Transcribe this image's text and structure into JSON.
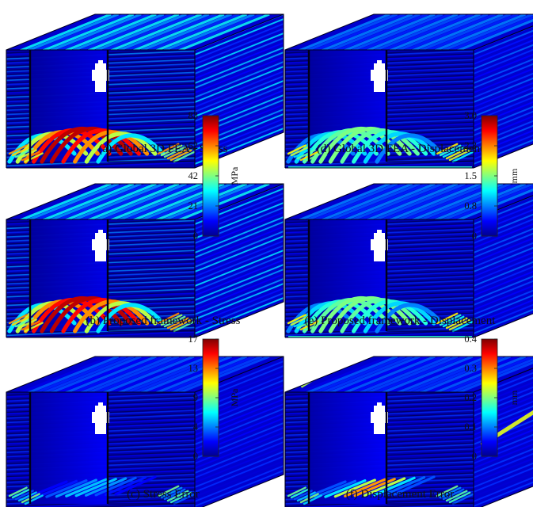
{
  "panels": [
    {
      "id": "a",
      "caption": "(a) Global 3D FEA - Stress",
      "field": "stress",
      "variant": "global",
      "strength": 1.0
    },
    {
      "id": "b",
      "caption": "(b) Proposed framework - Stress",
      "field": "stress",
      "variant": "proposed",
      "strength": 1.0
    },
    {
      "id": "c",
      "caption": "(c) Stress Error",
      "field": "stress",
      "variant": "error",
      "strength": 0.35
    },
    {
      "id": "d",
      "caption": "(d) Global 3D FEA - Displacement",
      "field": "displacement",
      "variant": "global",
      "strength": 0.45
    },
    {
      "id": "e",
      "caption": "(e) Proposed framework - Displacement",
      "field": "displacement",
      "variant": "proposed",
      "strength": 0.45
    },
    {
      "id": "f",
      "caption": "(f) Displacement Error",
      "field": "displacement",
      "variant": "error",
      "strength": 0.5
    }
  ],
  "colorbars": [
    {
      "id": "stress",
      "unit": "MPa",
      "ticks": [
        "0",
        "21",
        "42",
        "62",
        "83"
      ]
    },
    {
      "id": "displacement",
      "unit": "mm",
      "ticks": [
        "0",
        "0.8",
        "1.5",
        "2.3",
        "3.0"
      ]
    },
    {
      "id": "stress-error",
      "unit": "MPa",
      "ticks": [
        "0",
        "4",
        "9",
        "13",
        "17"
      ]
    },
    {
      "id": "displacement-error",
      "unit": "mm",
      "ticks": [
        "0",
        "0.1",
        "0.2",
        "0.3",
        "0.4"
      ]
    }
  ],
  "colormap": [
    "#00008f",
    "#0000ff",
    "#0080ff",
    "#00ffff",
    "#80ff80",
    "#ffff00",
    "#ff8000",
    "#ff0000",
    "#800000"
  ]
}
